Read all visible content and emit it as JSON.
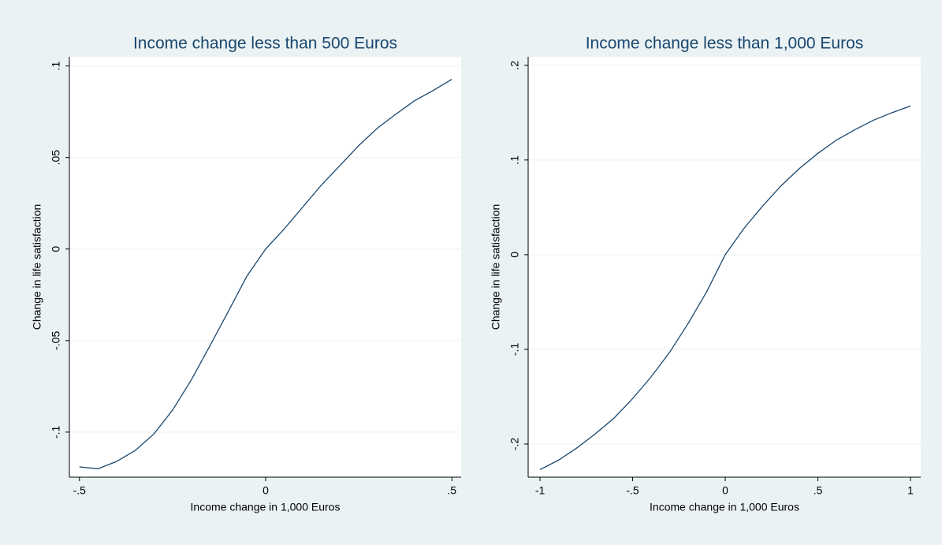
{
  "chart_data": [
    {
      "type": "line",
      "title": "Income change less than 500 Euros",
      "x_label": "Income change in 1,000 Euros",
      "y_label": "Change in life satisfaction",
      "x": [
        -0.5,
        -0.45,
        -0.4,
        -0.35,
        -0.3,
        -0.25,
        -0.2,
        -0.15,
        -0.1,
        -0.05,
        0,
        0.05,
        0.1,
        0.15,
        0.2,
        0.25,
        0.3,
        0.35,
        0.4,
        0.45,
        0.5
      ],
      "values": [
        -0.119,
        -0.12,
        -0.116,
        -0.11,
        -0.101,
        -0.088,
        -0.0716,
        -0.053,
        -0.034,
        -0.0147,
        0,
        0.011,
        0.023,
        0.035,
        0.0457,
        0.0565,
        0.066,
        0.0737,
        0.081,
        0.0866,
        0.0927
      ],
      "color": "#1a476f",
      "xlim": [
        -0.527,
        0.525
      ],
      "xticks": [
        {
          "value": -0.5,
          "label": "-.5"
        },
        0,
        {
          "value": 0.5,
          "label": ".5"
        }
      ],
      "ylim": [
        -0.1246,
        0.105
      ],
      "yticks": [
        {
          "value": -0.1,
          "label": "-.1"
        },
        {
          "value": -0.05,
          "label": "-.05"
        },
        0,
        {
          "value": 0.05,
          "label": ".05"
        },
        {
          "value": 0.1,
          "label": ".1"
        }
      ],
      "grid": true
    },
    {
      "type": "line",
      "title": "Income change less than 1,000 Euros",
      "x_label": "Income change in 1,000 Euros",
      "y_label": "Change in life satisfaction",
      "x": [
        -1,
        -0.9,
        -0.8,
        -0.7,
        -0.6,
        -0.5,
        -0.4,
        -0.3,
        -0.2,
        -0.1,
        0,
        0.1,
        0.2,
        0.3,
        0.4,
        0.5,
        0.6,
        0.7,
        0.8,
        0.9,
        1
      ],
      "values": [
        -0.227,
        -0.217,
        -0.204,
        -0.189,
        -0.1725,
        -0.152,
        -0.129,
        -0.103,
        -0.0725,
        -0.039,
        0,
        0.0275,
        0.051,
        0.0725,
        0.091,
        0.107,
        0.121,
        0.132,
        0.142,
        0.15,
        0.157
      ],
      "color": "#1a476f",
      "xlim": [
        -1.064,
        1.055
      ],
      "xticks": [
        -1,
        {
          "value": -0.5,
          "label": "-.5"
        },
        0,
        {
          "value": 0.5,
          "label": ".5"
        },
        1
      ],
      "ylim": [
        -0.235,
        0.209
      ],
      "yticks": [
        {
          "value": -0.2,
          "label": "-.2"
        },
        {
          "value": -0.1,
          "label": "-.1"
        },
        0,
        {
          "value": 0.1,
          "label": ".1"
        },
        {
          "value": 0.2,
          "label": ".2"
        }
      ],
      "grid": true
    }
  ]
}
